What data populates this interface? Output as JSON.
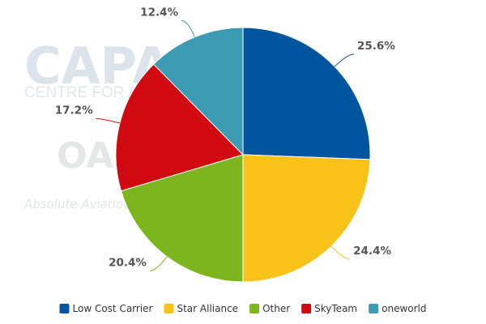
{
  "watermark": {
    "brand": "CAPA",
    "brand_line": "CENTRE FOR AVIATION",
    "partner": "OAG",
    "partner_tagline": "Absolute Aviation"
  },
  "chart_data": {
    "type": "pie",
    "slices": [
      {
        "name": "Low Cost Carrier",
        "value": 25.6,
        "label": "25.6%",
        "color": "#00569e"
      },
      {
        "name": "Star Alliance",
        "value": 24.4,
        "label": "24.4%",
        "color": "#f8c218"
      },
      {
        "name": "Other",
        "value": 20.4,
        "label": "20.4%",
        "color": "#7db51e"
      },
      {
        "name": "SkyTeam",
        "value": 17.2,
        "label": "17.2%",
        "color": "#d10a11"
      },
      {
        "name": "oneworld",
        "value": 12.4,
        "label": "12.4%",
        "color": "#3c9ab2"
      }
    ],
    "start_angle": "12 o'clock",
    "direction": "clockwise",
    "legend_position": "bottom"
  }
}
